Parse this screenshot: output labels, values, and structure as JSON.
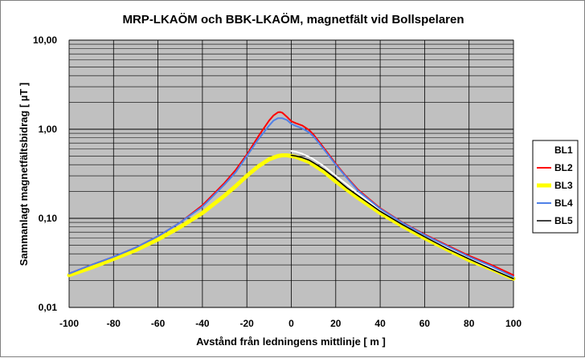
{
  "chart_data": {
    "type": "line",
    "title": "MRP-LKAÖM och BBK-LKAÖM, magnetfält vid Bollspelaren",
    "xlabel": "Avstånd från ledningens mittlinje [ m ]",
    "ylabel": "Sammanlagt magnetfältsbidrag [ µT ]",
    "xlim": [
      -100,
      100
    ],
    "ylim": [
      0.01,
      10
    ],
    "yscale": "log",
    "x_ticks": [
      "-100",
      "-80",
      "-60",
      "-40",
      "-20",
      "0",
      "20",
      "40",
      "60",
      "80",
      "100"
    ],
    "y_ticks": [
      "0,01",
      "0,10",
      "1,00",
      "10,00"
    ],
    "grid": true,
    "plot_background": "#c0c0c0",
    "legend_position": "right",
    "series": [
      {
        "name": "BL1",
        "color": "#ffffff",
        "width": 2,
        "x": [
          0,
          2,
          5,
          8,
          10,
          15,
          20,
          25,
          30,
          40,
          50,
          60,
          70,
          80,
          90,
          100
        ],
        "y": [
          0.57,
          0.56,
          0.53,
          0.49,
          0.46,
          0.38,
          0.3,
          0.24,
          0.19,
          0.125,
          0.087,
          0.063,
          0.047,
          0.036,
          0.028,
          0.022
        ]
      },
      {
        "name": "BL2",
        "color": "#ff0000",
        "width": 2,
        "x": [
          -100,
          -90,
          -80,
          -70,
          -60,
          -50,
          -40,
          -30,
          -25,
          -20,
          -15,
          -10,
          -8,
          -6,
          -5,
          -4,
          -2,
          0,
          2,
          5,
          8,
          10,
          15,
          20,
          25,
          30,
          40,
          50,
          60,
          70,
          80,
          90,
          100
        ],
        "y": [
          0.024,
          0.03,
          0.037,
          0.047,
          0.063,
          0.09,
          0.14,
          0.25,
          0.35,
          0.52,
          0.82,
          1.25,
          1.43,
          1.55,
          1.56,
          1.53,
          1.38,
          1.23,
          1.17,
          1.1,
          0.98,
          0.87,
          0.6,
          0.41,
          0.29,
          0.21,
          0.13,
          0.09,
          0.066,
          0.05,
          0.038,
          0.03,
          0.023
        ]
      },
      {
        "name": "BL3",
        "color": "#ffff00",
        "width": 5,
        "x": [
          -100,
          -90,
          -80,
          -70,
          -60,
          -50,
          -40,
          -30,
          -25,
          -20,
          -15,
          -10,
          -8,
          -6,
          -4,
          -2,
          0,
          2,
          5,
          8,
          10,
          15,
          20,
          25,
          30,
          40,
          50,
          60,
          70,
          80,
          90,
          100
        ],
        "y": [
          0.023,
          0.028,
          0.035,
          0.044,
          0.058,
          0.08,
          0.115,
          0.18,
          0.23,
          0.3,
          0.38,
          0.46,
          0.48,
          0.5,
          0.51,
          0.51,
          0.5,
          0.49,
          0.46,
          0.43,
          0.4,
          0.33,
          0.26,
          0.21,
          0.17,
          0.115,
          0.082,
          0.06,
          0.045,
          0.034,
          0.027,
          0.021
        ]
      },
      {
        "name": "BL4",
        "color": "#4f81e8",
        "width": 2,
        "x": [
          -100,
          -90,
          -80,
          -70,
          -60,
          -50,
          -40,
          -30,
          -25,
          -20,
          -15,
          -10,
          -8,
          -6,
          -4,
          -2,
          0,
          2,
          5,
          8,
          10,
          15,
          20,
          25,
          30,
          40,
          50,
          60,
          70,
          80,
          90,
          100
        ],
        "y": [
          0.024,
          0.03,
          0.037,
          0.047,
          0.063,
          0.09,
          0.135,
          0.24,
          0.33,
          0.5,
          0.76,
          1.1,
          1.25,
          1.33,
          1.33,
          1.27,
          1.15,
          1.09,
          1.02,
          0.92,
          0.83,
          0.58,
          0.4,
          0.285,
          0.205,
          0.128,
          0.089,
          0.065,
          0.049,
          0.037,
          0.029,
          0.022
        ]
      },
      {
        "name": "BL5",
        "color": "#000000",
        "width": 1.5,
        "x": [
          0,
          2,
          5,
          8,
          10,
          15,
          20,
          25,
          30,
          40,
          50,
          60,
          70,
          80,
          90,
          100
        ],
        "y": [
          0.51,
          0.5,
          0.48,
          0.45,
          0.42,
          0.35,
          0.28,
          0.22,
          0.18,
          0.12,
          0.085,
          0.062,
          0.046,
          0.035,
          0.027,
          0.021
        ]
      }
    ]
  }
}
